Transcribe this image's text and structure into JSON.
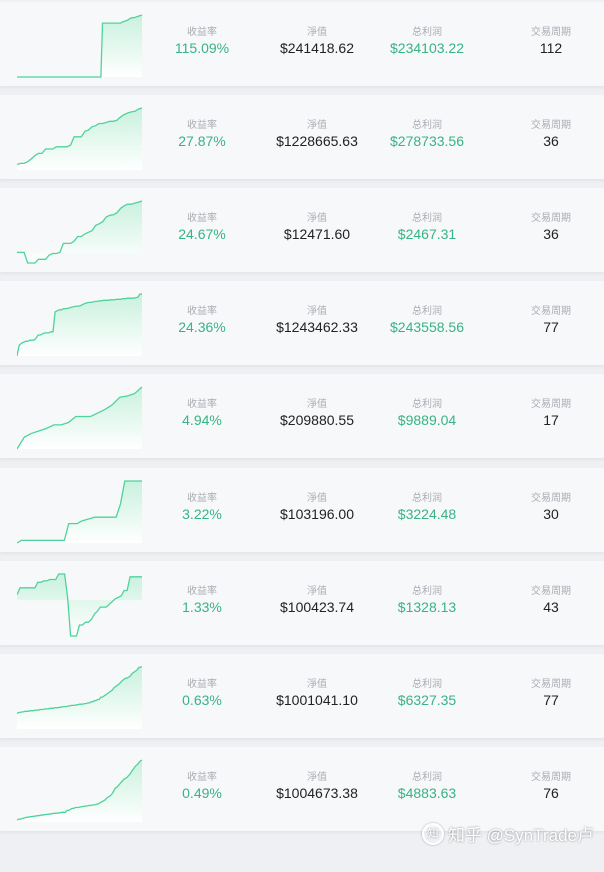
{
  "colors": {
    "accent": "#38b384",
    "line": "#4fd39a",
    "fill_top": "#c9f1de",
    "label": "#a8acb2",
    "card_bg": "#f7f8fa",
    "page_bg": "#eef0f3"
  },
  "columns": {
    "return_label": "收益率",
    "net_label": "淨值",
    "profit_label": "总利润",
    "period_label": "交易周期"
  },
  "strategies": [
    {
      "return_rate": "115.09%",
      "net_value": "$241418.62",
      "total_profit": "$234103.22",
      "period": "112",
      "spark": {
        "baseline": 0,
        "values": [
          0,
          0,
          0,
          0,
          0,
          0,
          0,
          0,
          0,
          0,
          0,
          0,
          0,
          0,
          0,
          0,
          0,
          0,
          0,
          0,
          0,
          0,
          0,
          0,
          0,
          0,
          0,
          0,
          0,
          0,
          0,
          0,
          0,
          0,
          0,
          0,
          0,
          0,
          0,
          0,
          0,
          0,
          0,
          0,
          0,
          0,
          0,
          0,
          0,
          0,
          0,
          0,
          1,
          1,
          1,
          1,
          1,
          1,
          1,
          1,
          1,
          1,
          1,
          1,
          1.02,
          1.03,
          1.04,
          1.05,
          1.07,
          1.09,
          1.1,
          1.1,
          1.11,
          1.12,
          1.13,
          1.14,
          1.15
        ]
      }
    },
    {
      "return_rate": "27.87%",
      "net_value": "$1228665.63",
      "total_profit": "$278733.56",
      "period": "36",
      "spark": {
        "baseline": 0,
        "values": [
          1,
          1.2,
          1.2,
          1.5,
          2,
          2.6,
          3,
          3,
          3.8,
          3.8,
          3.8,
          4.2,
          4.2,
          4.2,
          4.2,
          4.5,
          6,
          6,
          6,
          7,
          7.2,
          7.8,
          8,
          8.4,
          8.4,
          8.6,
          8.8,
          8.8,
          9,
          9.6,
          10,
          10.3,
          10.5,
          10.6,
          11,
          11.2
        ]
      }
    },
    {
      "return_rate": "24.67%",
      "net_value": "$12471.60",
      "total_profit": "$2467.31",
      "period": "36",
      "spark": {
        "baseline": 3.5,
        "values": [
          3.5,
          3.5,
          3.5,
          1.5,
          1.5,
          1.5,
          2.2,
          2.2,
          2.2,
          3,
          3.3,
          3.3,
          3.5,
          5.2,
          5.2,
          5.2,
          5.6,
          6.5,
          6.5,
          7,
          7.3,
          7.6,
          8.6,
          8.9,
          9.3,
          10.2,
          10.5,
          10.6,
          11,
          11.8,
          12.3,
          12.6,
          12.6,
          12.8,
          13,
          13.2
        ]
      }
    },
    {
      "return_rate": "24.36%",
      "net_value": "$1243462.33",
      "total_profit": "$243558.56",
      "period": "77",
      "spark": {
        "baseline": 0,
        "values": [
          0,
          2,
          2.4,
          2.6,
          2.8,
          2.8,
          3,
          3,
          3,
          3.4,
          4,
          4,
          4.2,
          4.4,
          4.4,
          4.4,
          4.6,
          4.6,
          8.4,
          8.6,
          8.8,
          8.8,
          9,
          9,
          9.1,
          9.2,
          9.3,
          9.4,
          9.5,
          9.5,
          9.6,
          9.8,
          10,
          10.1,
          10.2,
          10.2,
          10.3,
          10.4,
          10.4,
          10.5,
          10.5,
          10.6,
          10.6,
          10.6,
          10.7,
          10.7,
          10.7,
          10.8,
          10.8,
          10.8,
          10.9,
          10.9,
          11,
          11,
          11,
          11,
          11.1,
          11.2,
          11.8,
          11.8
        ]
      }
    },
    {
      "return_rate": "4.94%",
      "net_value": "$209880.55",
      "total_profit": "$9889.04",
      "period": "17",
      "spark": {
        "baseline": 0,
        "values": [
          0,
          2,
          2.6,
          3,
          3.4,
          4,
          4,
          4.4,
          5.4,
          5.4,
          5.4,
          6,
          6.6,
          7.4,
          8.6,
          8.8,
          9.2,
          10.3
        ]
      }
    },
    {
      "return_rate": "3.22%",
      "net_value": "$103196.00",
      "total_profit": "$3224.48",
      "period": "30",
      "spark": {
        "baseline": 0,
        "values": [
          0,
          0.4,
          0.4,
          0.4,
          0.4,
          0.4,
          0.4,
          0.4,
          0.4,
          0.4,
          0.4,
          0.4,
          3,
          3,
          3,
          3.4,
          3.6,
          3.8,
          4,
          4,
          4,
          4,
          4,
          4,
          6,
          9.6,
          9.6,
          9.6,
          9.6,
          9.6
        ]
      }
    },
    {
      "return_rate": "1.33%",
      "net_value": "$100423.74",
      "total_profit": "$1328.13",
      "period": "43",
      "spark": {
        "baseline": 5.6,
        "values": [
          6.4,
          7.4,
          7.4,
          7.4,
          7.4,
          7.4,
          7.4,
          8.2,
          8.2,
          8.4,
          8.4,
          8.6,
          8.6,
          8.6,
          9.4,
          9.4,
          9.4,
          6,
          0.4,
          0.4,
          0.4,
          2,
          2,
          2.4,
          2.4,
          2.8,
          3.6,
          4,
          4.6,
          4.6,
          4.6,
          5,
          5.4,
          5.8,
          6,
          6.2,
          7,
          7,
          9,
          9,
          9,
          9,
          9
        ]
      }
    },
    {
      "return_rate": "0.63%",
      "net_value": "$1001041.10",
      "total_profit": "$6327.35",
      "period": "77",
      "spark": {
        "baseline": 0,
        "values": [
          2.6,
          2.8,
          2.8,
          2.9,
          2.9,
          3,
          3,
          3,
          3.1,
          3.1,
          3.1,
          3.2,
          3.2,
          3.2,
          3.3,
          3.3,
          3.3,
          3.4,
          3.4,
          3.4,
          3.5,
          3.5,
          3.5,
          3.6,
          3.6,
          3.6,
          3.7,
          3.7,
          3.8,
          3.8,
          3.8,
          3.9,
          3.9,
          4,
          4,
          4,
          4.1,
          4.1,
          4.2,
          4.2,
          4.2,
          4.3,
          4.3,
          4.4,
          4.4,
          4.6,
          4.6,
          4.8,
          4.8,
          5,
          5,
          5.4,
          5.4,
          5.6,
          5.8,
          6,
          6.2,
          6.4,
          6.6,
          7,
          7.2,
          7.4,
          7.6,
          7.9,
          8.2,
          8.4,
          8.6,
          8.6,
          8.8,
          9,
          9.4,
          9.6,
          9.8,
          10,
          10.4,
          10.5,
          10.5
        ]
      }
    },
    {
      "return_rate": "0.49%",
      "net_value": "$1004673.38",
      "total_profit": "$4883.63",
      "period": "76",
      "spark": {
        "baseline": 0,
        "values": [
          0.4,
          0.6,
          0.6,
          0.7,
          0.8,
          0.9,
          1,
          1,
          1.1,
          1.1,
          1.2,
          1.2,
          1.3,
          1.3,
          1.4,
          1.4,
          1.5,
          1.5,
          1.6,
          1.6,
          1.7,
          1.7,
          1.8,
          1.8,
          1.8,
          1.9,
          1.9,
          2,
          2,
          2,
          2.4,
          2.4,
          2.6,
          2.8,
          2.8,
          3,
          3,
          3,
          3.1,
          3.2,
          3.2,
          3.3,
          3.3,
          3.4,
          3.4,
          3.5,
          3.5,
          3.6,
          3.7,
          3.8,
          4,
          4.2,
          4.4,
          4.6,
          5,
          5.2,
          5.4,
          5.8,
          6.4,
          7,
          7.2,
          7.6,
          8,
          8.4,
          8.8,
          9,
          9.2,
          9.6,
          10,
          10.6,
          11,
          11.5,
          11.8,
          12.2,
          12.6,
          12.8
        ]
      }
    }
  ],
  "watermark": "知乎 @SynTrade卢"
}
